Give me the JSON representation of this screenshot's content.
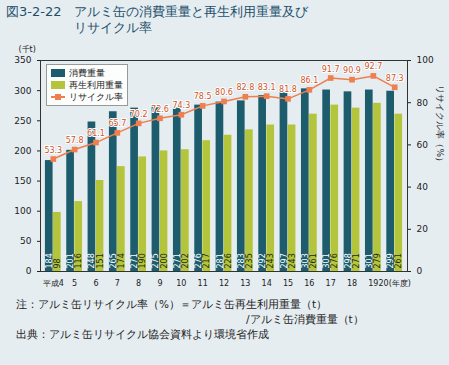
{
  "chart_data": {
    "type": "bar",
    "title": [
      "図3-2-22　アルミ缶の消費重量と再生利用重量及び",
      "リサイクル率"
    ],
    "y_label": "(千t)",
    "y2_label": "リサイクル率（%）",
    "notes": [
      "注：アルミ缶リサイクル率（%）＝アルミ缶再生利用重量（t）",
      "/アルミ缶消費重量（t）",
      "出典：アルミ缶リサイクル協会資料より環境省作成"
    ],
    "categories": [
      "平成4",
      "5",
      "6",
      "7",
      "8",
      "9",
      "10",
      "11",
      "12",
      "13",
      "14",
      "15",
      "16",
      "17",
      "18",
      "19",
      "20(年度)"
    ],
    "series": [
      {
        "name": "消費重量",
        "type": "bar",
        "color": "#1d5c6c",
        "values": [
          184,
          201,
          248,
          265,
          271,
          275,
          271,
          276,
          281,
          283,
          292,
          297,
          303,
          301,
          298,
          301,
          299
        ]
      },
      {
        "name": "再生利用重量",
        "type": "bar",
        "color": "#b4c53c",
        "values": [
          98,
          116,
          151,
          174,
          190,
          200,
          202,
          217,
          226,
          235,
          243,
          243,
          261,
          276,
          271,
          279,
          261
        ]
      },
      {
        "name": "リサイクル率",
        "type": "line",
        "axis": "y2",
        "color": "#ef7f4f",
        "marker": "square",
        "values": [
          53.3,
          57.8,
          61.1,
          65.7,
          70.2,
          72.6,
          74.3,
          78.5,
          80.6,
          82.8,
          83.1,
          81.8,
          86.1,
          91.7,
          90.9,
          92.7,
          87.3
        ]
      }
    ],
    "ylim": [
      0,
      350
    ],
    "yticks": [
      0,
      50,
      100,
      150,
      200,
      250,
      300,
      350
    ],
    "y2lim": [
      0,
      100
    ],
    "y2ticks": [
      0,
      20,
      40,
      60,
      80,
      100
    ],
    "legend": "top-left",
    "data_labels": true,
    "grid": false
  }
}
